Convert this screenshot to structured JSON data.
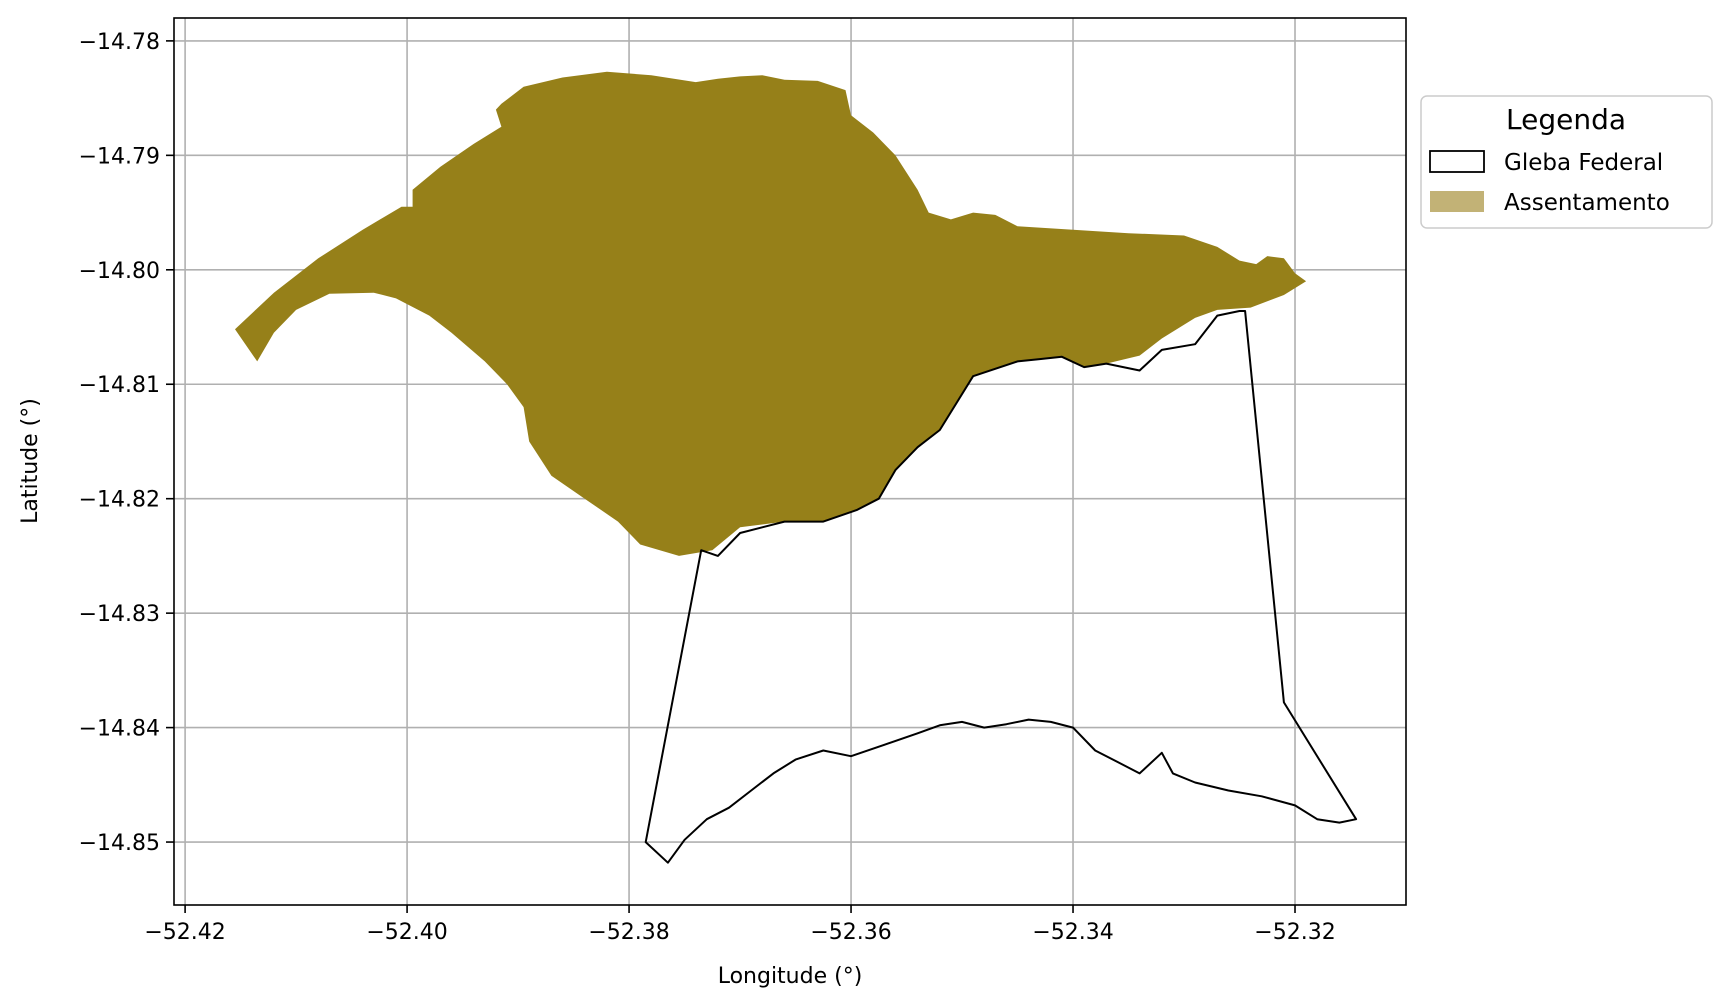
{
  "chart_data": {
    "type": "map",
    "xlabel": "Longitude (°)",
    "ylabel": "Latitude (°)",
    "xlim": [
      -52.421,
      -52.31
    ],
    "ylim": [
      -14.8555,
      -14.778
    ],
    "xticks": [
      {
        "value": -52.42,
        "label": "−52.42"
      },
      {
        "value": -52.4,
        "label": "−52.40"
      },
      {
        "value": -52.38,
        "label": "−52.38"
      },
      {
        "value": -52.36,
        "label": "−52.36"
      },
      {
        "value": -52.34,
        "label": "−52.34"
      },
      {
        "value": -52.32,
        "label": "−52.32"
      }
    ],
    "yticks": [
      {
        "value": -14.78,
        "label": "−14.78"
      },
      {
        "value": -14.79,
        "label": "−14.79"
      },
      {
        "value": -14.8,
        "label": "−14.80"
      },
      {
        "value": -14.81,
        "label": "−14.81"
      },
      {
        "value": -14.82,
        "label": "−14.82"
      },
      {
        "value": -14.83,
        "label": "−14.83"
      },
      {
        "value": -14.84,
        "label": "−14.84"
      },
      {
        "value": -14.85,
        "label": "−14.85"
      }
    ],
    "grid": true,
    "legend": {
      "title": "Legenda",
      "placement": "outside-right-top",
      "items": [
        {
          "label": "Gleba Federal",
          "style": "outline",
          "color": "#000000"
        },
        {
          "label": "Assentamento",
          "style": "fill",
          "color": "#c2b276"
        }
      ]
    },
    "layers": [
      {
        "name": "Assentamento",
        "color": "#968019",
        "style": "fill",
        "coords": [
          [
            -52.3915,
            -14.7855
          ],
          [
            -52.3895,
            -14.784
          ],
          [
            -52.386,
            -14.7832
          ],
          [
            -52.382,
            -14.7827
          ],
          [
            -52.378,
            -14.783
          ],
          [
            -52.374,
            -14.7836
          ],
          [
            -52.372,
            -14.7833
          ],
          [
            -52.37,
            -14.7831
          ],
          [
            -52.368,
            -14.783
          ],
          [
            -52.366,
            -14.7834
          ],
          [
            -52.363,
            -14.7835
          ],
          [
            -52.3605,
            -14.7843
          ],
          [
            -52.36,
            -14.7865
          ],
          [
            -52.358,
            -14.788
          ],
          [
            -52.356,
            -14.79
          ],
          [
            -52.354,
            -14.793
          ],
          [
            -52.353,
            -14.795
          ],
          [
            -52.351,
            -14.7956
          ],
          [
            -52.349,
            -14.795
          ],
          [
            -52.347,
            -14.7952
          ],
          [
            -52.345,
            -14.7962
          ],
          [
            -52.34,
            -14.7965
          ],
          [
            -52.335,
            -14.7968
          ],
          [
            -52.33,
            -14.797
          ],
          [
            -52.327,
            -14.798
          ],
          [
            -52.325,
            -14.7992
          ],
          [
            -52.3235,
            -14.7995
          ],
          [
            -52.3225,
            -14.7988
          ],
          [
            -52.321,
            -14.799
          ],
          [
            -52.32,
            -14.8003
          ],
          [
            -52.319,
            -14.801
          ],
          [
            -52.321,
            -14.8022
          ],
          [
            -52.324,
            -14.8033
          ],
          [
            -52.327,
            -14.8035
          ],
          [
            -52.329,
            -14.8042
          ],
          [
            -52.332,
            -14.806
          ],
          [
            -52.334,
            -14.8075
          ],
          [
            -52.337,
            -14.8082
          ],
          [
            -52.339,
            -14.8085
          ],
          [
            -52.341,
            -14.8076
          ],
          [
            -52.343,
            -14.8078
          ],
          [
            -52.345,
            -14.808
          ],
          [
            -52.349,
            -14.8093
          ],
          [
            -52.352,
            -14.814
          ],
          [
            -52.354,
            -14.8155
          ],
          [
            -52.356,
            -14.8175
          ],
          [
            -52.3575,
            -14.82
          ],
          [
            -52.3595,
            -14.821
          ],
          [
            -52.3625,
            -14.822
          ],
          [
            -52.366,
            -14.822
          ],
          [
            -52.37,
            -14.8225
          ],
          [
            -52.3725,
            -14.8245
          ],
          [
            -52.3755,
            -14.825
          ],
          [
            -52.379,
            -14.824
          ],
          [
            -52.381,
            -14.822
          ],
          [
            -52.384,
            -14.82
          ],
          [
            -52.387,
            -14.818
          ],
          [
            -52.389,
            -14.815
          ],
          [
            -52.3895,
            -14.812
          ],
          [
            -52.391,
            -14.81
          ],
          [
            -52.393,
            -14.808
          ],
          [
            -52.396,
            -14.8055
          ],
          [
            -52.398,
            -14.804
          ],
          [
            -52.401,
            -14.8025
          ],
          [
            -52.403,
            -14.802
          ],
          [
            -52.407,
            -14.8021
          ],
          [
            -52.41,
            -14.8035
          ],
          [
            -52.412,
            -14.8055
          ],
          [
            -52.4135,
            -14.808
          ],
          [
            -52.4155,
            -14.8052
          ],
          [
            -52.412,
            -14.802
          ],
          [
            -52.408,
            -14.799
          ],
          [
            -52.404,
            -14.7965
          ],
          [
            -52.4005,
            -14.7945
          ],
          [
            -52.3995,
            -14.7945
          ],
          [
            -52.3995,
            -14.793
          ],
          [
            -52.397,
            -14.791
          ],
          [
            -52.394,
            -14.789
          ],
          [
            -52.3915,
            -14.7875
          ],
          [
            -52.392,
            -14.786
          ]
        ]
      },
      {
        "name": "Gleba Federal",
        "color": "#000000",
        "style": "outline",
        "coords": [
          [
            -52.3785,
            -14.85
          ],
          [
            -52.3735,
            -14.8245
          ],
          [
            -52.372,
            -14.825
          ],
          [
            -52.37,
            -14.823
          ],
          [
            -52.366,
            -14.822
          ],
          [
            -52.3625,
            -14.822
          ],
          [
            -52.3595,
            -14.821
          ],
          [
            -52.3575,
            -14.82
          ],
          [
            -52.356,
            -14.8175
          ],
          [
            -52.354,
            -14.8155
          ],
          [
            -52.352,
            -14.814
          ],
          [
            -52.349,
            -14.8093
          ],
          [
            -52.345,
            -14.808
          ],
          [
            -52.343,
            -14.8078
          ],
          [
            -52.341,
            -14.8076
          ],
          [
            -52.339,
            -14.8085
          ],
          [
            -52.337,
            -14.8082
          ],
          [
            -52.334,
            -14.8088
          ],
          [
            -52.332,
            -14.807
          ],
          [
            -52.329,
            -14.8065
          ],
          [
            -52.327,
            -14.804
          ],
          [
            -52.325,
            -14.8036
          ],
          [
            -52.3245,
            -14.8036
          ],
          [
            -52.321,
            -14.8378
          ],
          [
            -52.3145,
            -14.848
          ],
          [
            -52.316,
            -14.8483
          ],
          [
            -52.318,
            -14.848
          ],
          [
            -52.32,
            -14.8468
          ],
          [
            -52.323,
            -14.846
          ],
          [
            -52.326,
            -14.8455
          ],
          [
            -52.329,
            -14.8448
          ],
          [
            -52.331,
            -14.844
          ],
          [
            -52.332,
            -14.8422
          ],
          [
            -52.334,
            -14.844
          ],
          [
            -52.336,
            -14.843
          ],
          [
            -52.338,
            -14.842
          ],
          [
            -52.34,
            -14.84
          ],
          [
            -52.342,
            -14.8395
          ],
          [
            -52.344,
            -14.8393
          ],
          [
            -52.346,
            -14.8397
          ],
          [
            -52.348,
            -14.84
          ],
          [
            -52.35,
            -14.8395
          ],
          [
            -52.352,
            -14.8398
          ],
          [
            -52.354,
            -14.8405
          ],
          [
            -52.357,
            -14.8415
          ],
          [
            -52.36,
            -14.8425
          ],
          [
            -52.3625,
            -14.842
          ],
          [
            -52.365,
            -14.8428
          ],
          [
            -52.367,
            -14.844
          ],
          [
            -52.369,
            -14.8455
          ],
          [
            -52.371,
            -14.847
          ],
          [
            -52.373,
            -14.848
          ],
          [
            -52.375,
            -14.8498
          ],
          [
            -52.3765,
            -14.8518
          ],
          [
            -52.3785,
            -14.85
          ]
        ]
      }
    ]
  }
}
